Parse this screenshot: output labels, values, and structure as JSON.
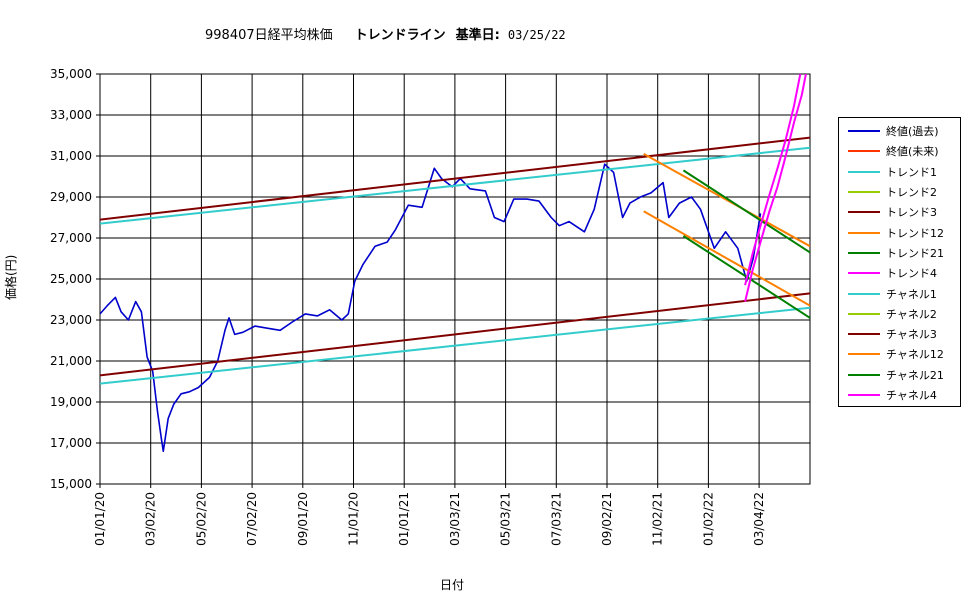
{
  "header": {
    "code_name": "998407日経平均株価",
    "trend_label": "トレンドライン",
    "base_label": "基準日:",
    "base_date": "03/25/22"
  },
  "colors": {
    "close_past": "#0000CC",
    "close_future": "#FF3300",
    "trend1": "#33CCCC",
    "trend2": "#99CC00",
    "trend3": "#800000",
    "trend12": "#FF8000",
    "trend21": "#008000",
    "trend4": "#FF00FF",
    "chan1": "#33CCCC",
    "chan2": "#99CC00",
    "chan3": "#800000",
    "chan12": "#FF8000",
    "chan21": "#008000",
    "chan4": "#FF00FF"
  },
  "chart_data": {
    "type": "line",
    "xlabel": "日付",
    "ylabel": "価格(円)",
    "ylim": [
      15000,
      35000
    ],
    "xlim": [
      "2020-01-01",
      "2022-05-25"
    ],
    "grid": true,
    "legend_position": "right",
    "y_ticks": [
      "15,000",
      "17,000",
      "19,000",
      "21,000",
      "23,000",
      "25,000",
      "27,000",
      "29,000",
      "31,000",
      "33,000",
      "35,000"
    ],
    "x_ticks": [
      "01/01/20",
      "03/02/20",
      "05/02/20",
      "07/02/20",
      "09/01/20",
      "11/01/20",
      "01/01/21",
      "03/03/21",
      "05/03/21",
      "07/03/21",
      "09/02/21",
      "11/02/21",
      "01/02/22",
      "03/04/22"
    ],
    "legend": [
      "終値(過去)",
      "終値(未来)",
      "トレンド1",
      "トレンド2",
      "トレンド3",
      "トレンド12",
      "トレンド21",
      "トレンド4",
      "チャネル1",
      "チャネル2",
      "チャネル3",
      "チャネル12",
      "チャネル21",
      "チャネル4"
    ],
    "series": [
      {
        "name": "終値(過去)",
        "x": [
          "2020-01-01",
          "2020-01-10",
          "2020-01-20",
          "2020-01-27",
          "2020-02-05",
          "2020-02-14",
          "2020-02-21",
          "2020-02-28",
          "2020-03-06",
          "2020-03-12",
          "2020-03-17",
          "2020-03-19",
          "2020-03-25",
          "2020-04-01",
          "2020-04-10",
          "2020-04-20",
          "2020-05-01",
          "2020-05-15",
          "2020-05-25",
          "2020-06-03",
          "2020-06-08",
          "2020-06-15",
          "2020-06-25",
          "2020-07-10",
          "2020-07-25",
          "2020-08-10",
          "2020-08-25",
          "2020-09-10",
          "2020-09-25",
          "2020-10-10",
          "2020-10-25",
          "2020-11-02",
          "2020-11-10",
          "2020-11-20",
          "2020-12-05",
          "2020-12-20",
          "2020-12-30",
          "2021-01-15",
          "2021-02-01",
          "2021-02-16",
          "2021-02-25",
          "2021-03-10",
          "2021-03-20",
          "2021-04-01",
          "2021-04-20",
          "2021-05-01",
          "2021-05-13",
          "2021-05-25",
          "2021-06-10",
          "2021-06-25",
          "2021-07-10",
          "2021-07-20",
          "2021-08-01",
          "2021-08-20",
          "2021-09-01",
          "2021-09-14",
          "2021-09-25",
          "2021-10-06",
          "2021-10-15",
          "2021-10-28",
          "2021-11-10",
          "2021-11-25",
          "2021-12-02",
          "2021-12-15",
          "2021-12-30",
          "2022-01-10",
          "2022-01-27",
          "2022-02-10",
          "2022-02-25",
          "2022-03-08",
          "2022-03-16",
          "2022-03-25"
        ],
        "y": [
          23300,
          23700,
          24100,
          23400,
          23000,
          23900,
          23400,
          21200,
          20500,
          18500,
          17100,
          16600,
          18200,
          18900,
          19400,
          19500,
          19700,
          20200,
          21000,
          22500,
          23100,
          22300,
          22400,
          22700,
          22600,
          22500,
          22900,
          23300,
          23200,
          23500,
          23000,
          23300,
          24900,
          25700,
          26600,
          26800,
          27400,
          28600,
          28500,
          30400,
          29900,
          29500,
          29900,
          29400,
          29300,
          28000,
          27800,
          28900,
          28900,
          28800,
          28000,
          27600,
          27800,
          27300,
          28400,
          30600,
          30200,
          28000,
          28700,
          29000,
          29200,
          29700,
          28000,
          28700,
          29000,
          28400,
          26500,
          27300,
          26500,
          24900,
          26000,
          28200
        ]
      },
      {
        "name": "トレンド3",
        "x": [
          "2020-01-01",
          "2022-05-25"
        ],
        "y": [
          27900,
          31900
        ]
      },
      {
        "name": "トレンド1",
        "x": [
          "2020-01-01",
          "2022-05-25"
        ],
        "y": [
          27700,
          31400
        ]
      },
      {
        "name": "チャネル3",
        "x": [
          "2020-01-01",
          "2022-05-25"
        ],
        "y": [
          20300,
          24300
        ]
      },
      {
        "name": "チャネル1",
        "x": [
          "2020-01-01",
          "2022-05-25"
        ],
        "y": [
          19900,
          23600
        ]
      },
      {
        "name": "トレンド12",
        "x": [
          "2021-11-01",
          "2022-05-25"
        ],
        "y": [
          31100,
          26600
        ]
      },
      {
        "name": "チャネル12",
        "x": [
          "2021-11-01",
          "2022-05-25"
        ],
        "y": [
          28300,
          23700
        ]
      },
      {
        "name": "トレンド21",
        "x": [
          "2021-12-20",
          "2022-05-25"
        ],
        "y": [
          30300,
          26300
        ]
      },
      {
        "name": "チャネル21",
        "x": [
          "2021-12-20",
          "2022-05-25"
        ],
        "y": [
          27100,
          23100
        ]
      },
      {
        "name": "トレンド4",
        "x": [
          "2022-03-06",
          "2022-03-15",
          "2022-03-25",
          "2022-04-05",
          "2022-04-15",
          "2022-04-25",
          "2022-05-05",
          "2022-05-15",
          "2022-05-20"
        ],
        "y": [
          23900,
          25400,
          26800,
          28300,
          29500,
          31000,
          32600,
          34000,
          35000
        ]
      },
      {
        "name": "チャネル4",
        "x": [
          "2022-03-06",
          "2022-03-15",
          "2022-03-25",
          "2022-04-05",
          "2022-04-15",
          "2022-04-25",
          "2022-05-05",
          "2022-05-13"
        ],
        "y": [
          24700,
          26200,
          27600,
          29100,
          30400,
          31800,
          33400,
          35000
        ]
      }
    ]
  }
}
